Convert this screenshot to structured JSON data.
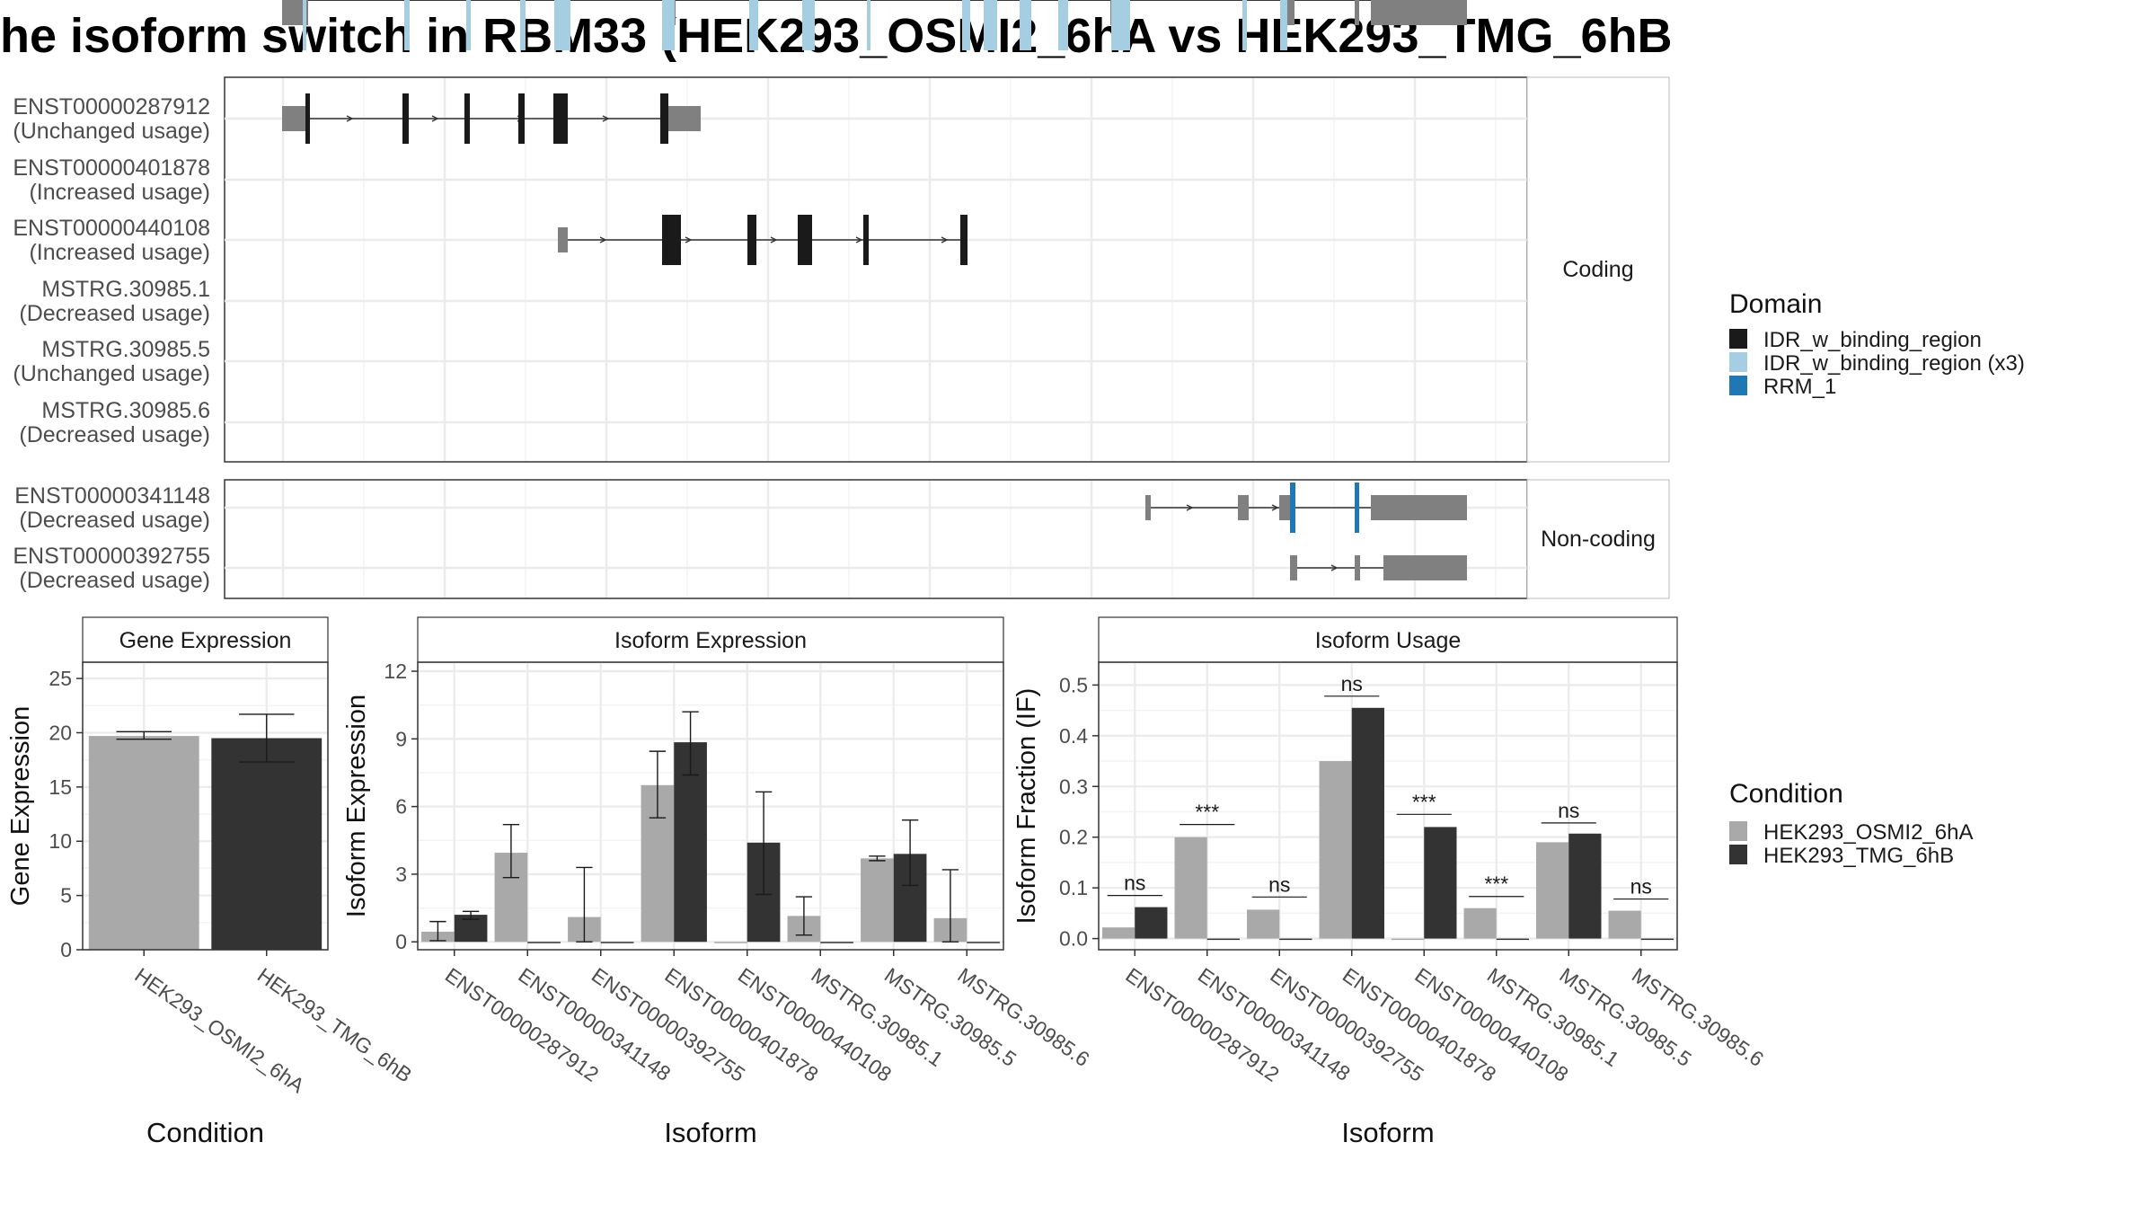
{
  "title": "he isoform switch in RBM33 (HEK293_OSMI2_6hA vs HEK293_TMG_6hB",
  "colors": {
    "cond_a": "#a9a9a9",
    "cond_b": "#333333",
    "domain_idr": "#1a1a1a",
    "domain_idr3": "#a6cee3",
    "domain_rrm": "#1f78b4",
    "exon_gray": "#808080",
    "grid": "#ebebeb"
  },
  "structure": {
    "facets": [
      "Coding",
      "Non-coding"
    ],
    "transcripts": [
      {
        "id": "ENST00000287912",
        "usage": "(Unchanged usage)",
        "facet": "Coding"
      },
      {
        "id": "ENST00000401878",
        "usage": "(Increased usage)",
        "facet": "Coding"
      },
      {
        "id": "ENST00000440108",
        "usage": "(Increased usage)",
        "facet": "Coding"
      },
      {
        "id": "MSTRG.30985.1",
        "usage": "(Decreased usage)",
        "facet": "Coding"
      },
      {
        "id": "MSTRG.30985.5",
        "usage": "(Unchanged usage)",
        "facet": "Coding"
      },
      {
        "id": "MSTRG.30985.6",
        "usage": "(Decreased usage)",
        "facet": "Coding"
      },
      {
        "id": "ENST00000341148",
        "usage": "(Decreased usage)",
        "facet": "Non-coding"
      },
      {
        "id": "ENST00000392755",
        "usage": "(Decreased usage)",
        "facet": "Non-coding"
      }
    ]
  },
  "legend_domain": {
    "title": "Domain",
    "items": [
      {
        "label": "IDR_w_binding_region",
        "color": "#1a1a1a"
      },
      {
        "label": "IDR_w_binding_region (x3)",
        "color": "#a6cee3"
      },
      {
        "label": "RRM_1",
        "color": "#1f78b4"
      }
    ]
  },
  "legend_condition": {
    "title": "Condition",
    "items": [
      {
        "label": "HEK293_OSMI2_6hA",
        "color": "#a9a9a9"
      },
      {
        "label": "HEK293_TMG_6hB",
        "color": "#333333"
      }
    ]
  },
  "chart_data": [
    {
      "type": "bar",
      "title": "Gene Expression",
      "xlabel": "Condition",
      "ylabel": "Gene Expression",
      "ylim": [
        0,
        26.5
      ],
      "yticks": [
        0,
        5,
        10,
        15,
        20,
        25
      ],
      "categories": [
        "HEK293_OSMI2_6hA",
        "HEK293_TMG_6hB"
      ],
      "values": [
        19.7,
        19.5
      ],
      "errors": [
        [
          19.4,
          20.1
        ],
        [
          17.3,
          21.7
        ]
      ]
    },
    {
      "type": "bar",
      "title": "Isoform Expression",
      "xlabel": "Isoform",
      "ylabel": "Isoform Expression",
      "ylim": [
        -0.35,
        12.4
      ],
      "yticks": [
        0,
        3,
        6,
        9,
        12
      ],
      "categories": [
        "ENST00000287912",
        "ENST00000341148",
        "ENST00000392755",
        "ENST00000401878",
        "ENST00000440108",
        "MSTRG.30985.1",
        "MSTRG.30985.5",
        "MSTRG.30985.6"
      ],
      "series": [
        {
          "name": "HEK293_OSMI2_6hA",
          "values": [
            0.45,
            3.95,
            1.1,
            6.95,
            0.0,
            1.15,
            3.7,
            1.05
          ],
          "errors": [
            [
              0.05,
              0.9
            ],
            [
              2.85,
              5.2
            ],
            [
              0.0,
              3.3
            ],
            [
              5.5,
              8.45
            ],
            null,
            [
              0.3,
              2.0
            ],
            [
              3.6,
              3.8
            ],
            [
              0.0,
              3.2
            ]
          ]
        },
        {
          "name": "HEK293_TMG_6hB",
          "values": [
            1.2,
            0.0,
            0.0,
            8.85,
            4.4,
            0.0,
            3.9,
            0.0
          ],
          "errors": [
            [
              1.0,
              1.35
            ],
            null,
            null,
            [
              7.4,
              10.2
            ],
            [
              2.1,
              6.65
            ],
            null,
            [
              2.5,
              5.4
            ],
            null
          ]
        }
      ]
    },
    {
      "type": "bar",
      "title": "Isoform Usage",
      "xlabel": "Isoform",
      "ylabel": "Isoform Fraction (IF)",
      "ylim": [
        -0.022,
        0.545
      ],
      "yticks": [
        0.0,
        0.1,
        0.2,
        0.3,
        0.4,
        0.5
      ],
      "ytick_labels": [
        "0.0",
        "0.1",
        "0.2",
        "0.3",
        "0.4",
        "0.5"
      ],
      "categories": [
        "ENST00000287912",
        "ENST00000341148",
        "ENST00000392755",
        "ENST00000401878",
        "ENST00000440108",
        "MSTRG.30985.1",
        "MSTRG.30985.5",
        "MSTRG.30985.6"
      ],
      "series": [
        {
          "name": "HEK293_OSMI2_6hA",
          "values": [
            0.022,
            0.2,
            0.057,
            0.35,
            0.0,
            0.06,
            0.19,
            0.055
          ]
        },
        {
          "name": "HEK293_TMG_6hB",
          "values": [
            0.062,
            0.0,
            0.0,
            0.455,
            0.22,
            0.0,
            0.207,
            0.0
          ]
        }
      ],
      "annotations": [
        "ns",
        "***",
        "ns",
        "ns",
        "***",
        "***",
        "ns",
        "ns"
      ],
      "annotation_levels": [
        0.085,
        0.225,
        0.082,
        0.478,
        0.245,
        0.083,
        0.228,
        0.078
      ]
    }
  ]
}
